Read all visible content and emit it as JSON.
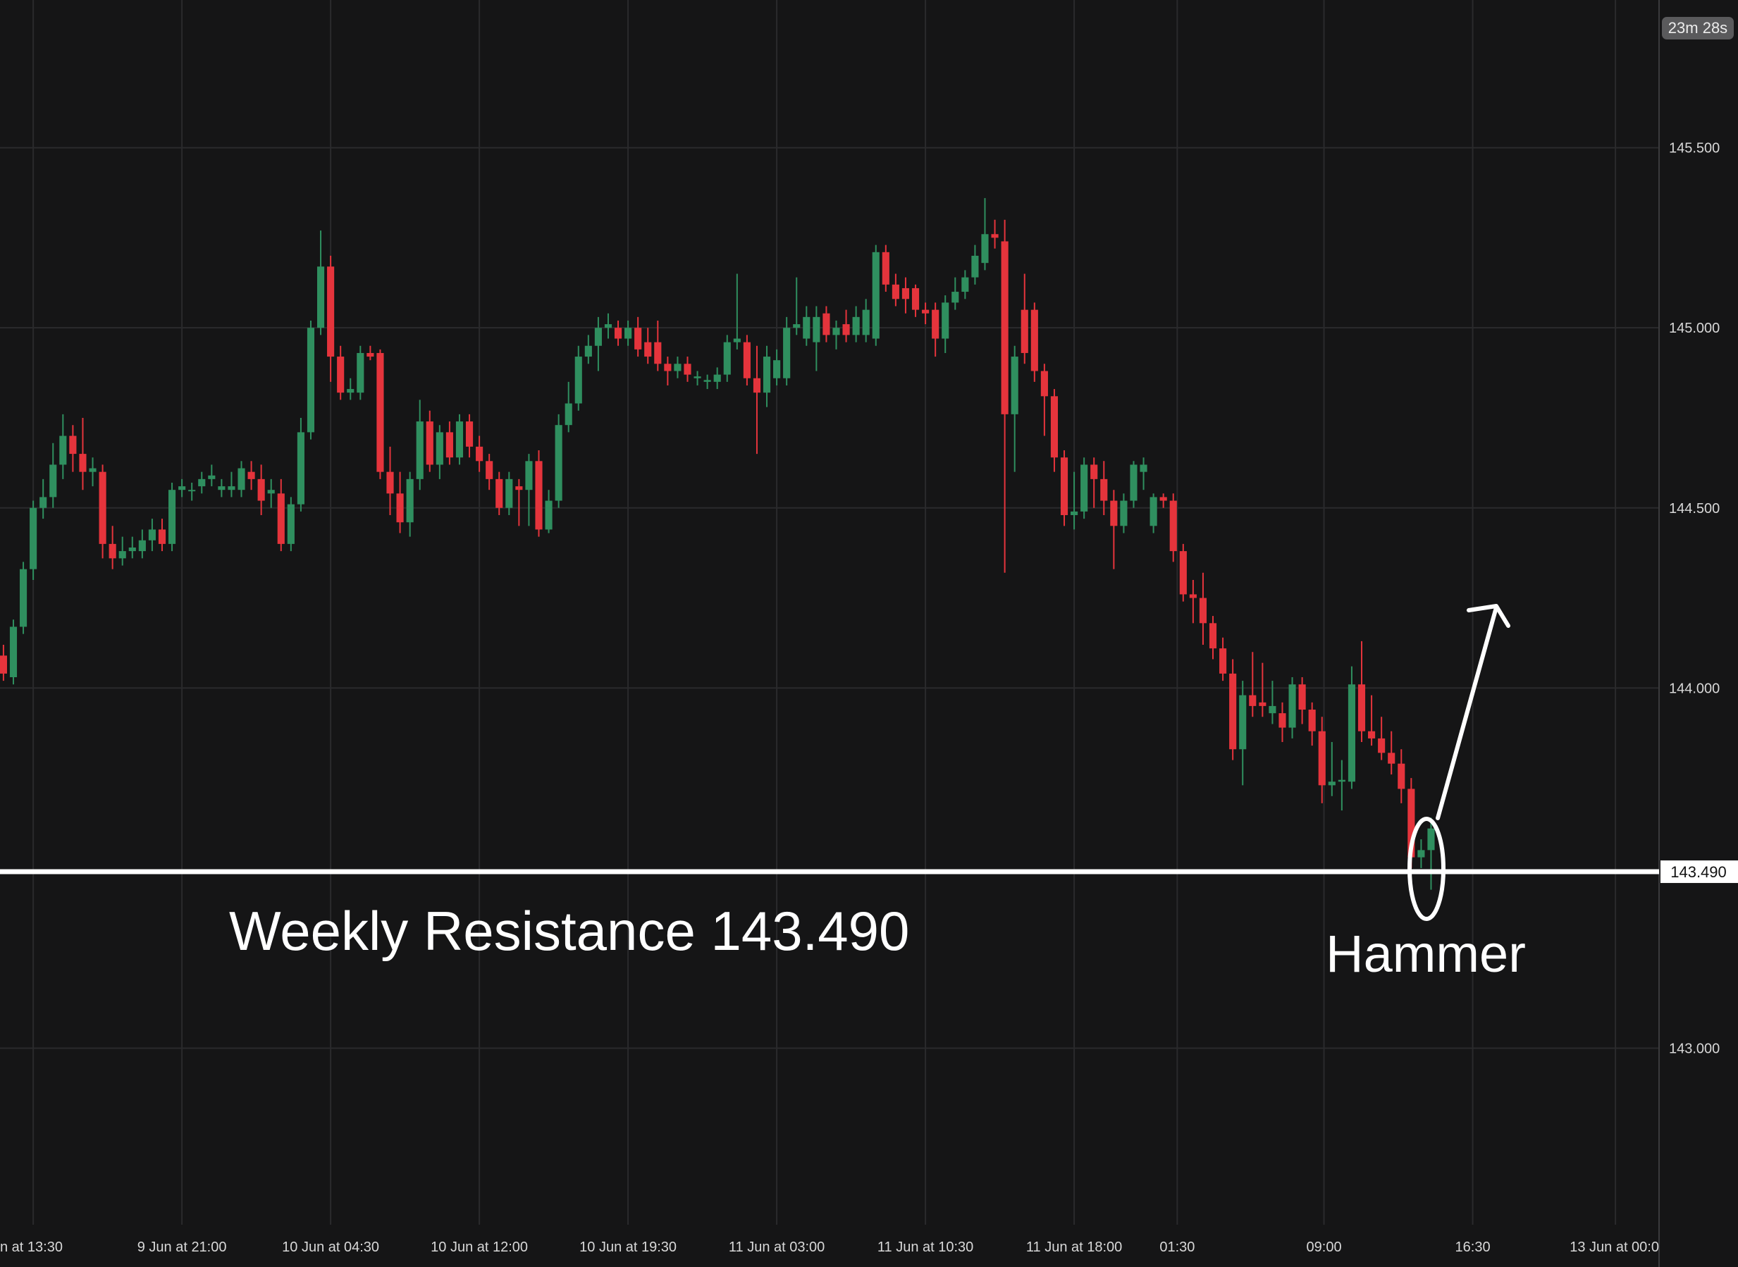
{
  "chart_data": {
    "type": "candlestick",
    "timer": "23m 28s",
    "up_color": "#2f8f5f",
    "down_color": "#e5343c",
    "xlim": [
      -3.35,
      164
    ],
    "ylim": [
      142.51,
      145.91
    ],
    "yticks": [
      {
        "value": 145.5,
        "label": "145.500"
      },
      {
        "value": 145.0,
        "label": "145.000"
      },
      {
        "value": 144.5,
        "label": "144.500"
      },
      {
        "value": 144.0,
        "label": "144.000"
      },
      {
        "value": 143.0,
        "label": "143.000"
      }
    ],
    "xticks": [
      {
        "value": 0,
        "label": "n at 13:30"
      },
      {
        "value": 15,
        "label": "9 Jun at 21:00"
      },
      {
        "value": 30,
        "label": "10 Jun at 04:30"
      },
      {
        "value": 45,
        "label": "10 Jun at 12:00"
      },
      {
        "value": 60,
        "label": "10 Jun at 19:30"
      },
      {
        "value": 75,
        "label": "11 Jun at 03:00"
      },
      {
        "value": 90,
        "label": "11 Jun at 10:30"
      },
      {
        "value": 105,
        "label": "11 Jun at 18:00"
      },
      {
        "value": 115.4,
        "label": "01:30"
      },
      {
        "value": 130.2,
        "label": "09:00"
      },
      {
        "value": 145.2,
        "label": "16:30"
      },
      {
        "value": 159.6,
        "label": "13 Jun at 00:0"
      }
    ],
    "grid": true,
    "price_line": {
      "value": 143.49,
      "label": "143.490"
    },
    "annotations": {
      "resistance": "Weekly Resistance 143.490",
      "pattern": "Hammer"
    },
    "x0": -3,
    "candles": [
      [
        144.09,
        144.12,
        144.02,
        144.04
      ],
      [
        144.03,
        144.19,
        144.01,
        144.17
      ],
      [
        144.17,
        144.35,
        144.15,
        144.33
      ],
      [
        144.33,
        144.52,
        144.3,
        144.5
      ],
      [
        144.5,
        144.58,
        144.47,
        144.53
      ],
      [
        144.53,
        144.68,
        144.5,
        144.62
      ],
      [
        144.62,
        144.76,
        144.58,
        144.7
      ],
      [
        144.7,
        144.73,
        144.6,
        144.65
      ],
      [
        144.65,
        144.75,
        144.55,
        144.6
      ],
      [
        144.6,
        144.64,
        144.56,
        144.61
      ],
      [
        144.6,
        144.62,
        144.36,
        144.4
      ],
      [
        144.4,
        144.45,
        144.33,
        144.36
      ],
      [
        144.36,
        144.42,
        144.34,
        144.38
      ],
      [
        144.38,
        144.42,
        144.36,
        144.39
      ],
      [
        144.38,
        144.44,
        144.36,
        144.41
      ],
      [
        144.41,
        144.47,
        144.38,
        144.44
      ],
      [
        144.44,
        144.47,
        144.38,
        144.4
      ],
      [
        144.4,
        144.57,
        144.38,
        144.55
      ],
      [
        144.55,
        144.58,
        144.53,
        144.56
      ],
      [
        144.55,
        144.57,
        144.52,
        144.55
      ],
      [
        144.56,
        144.6,
        144.54,
        144.58
      ],
      [
        144.58,
        144.62,
        144.56,
        144.59
      ],
      [
        144.55,
        144.58,
        144.53,
        144.56
      ],
      [
        144.55,
        144.6,
        144.53,
        144.56
      ],
      [
        144.55,
        144.63,
        144.53,
        144.61
      ],
      [
        144.6,
        144.63,
        144.55,
        144.58
      ],
      [
        144.58,
        144.62,
        144.48,
        144.52
      ],
      [
        144.54,
        144.58,
        144.5,
        144.55
      ],
      [
        144.54,
        144.58,
        144.38,
        144.4
      ],
      [
        144.4,
        144.53,
        144.38,
        144.51
      ],
      [
        144.51,
        144.75,
        144.49,
        144.71
      ],
      [
        144.71,
        145.02,
        144.69,
        145.0
      ],
      [
        145.0,
        145.27,
        144.98,
        145.17
      ],
      [
        145.17,
        145.2,
        144.85,
        144.92
      ],
      [
        144.92,
        144.95,
        144.8,
        144.82
      ],
      [
        144.82,
        144.86,
        144.8,
        144.83
      ],
      [
        144.82,
        144.95,
        144.8,
        144.93
      ],
      [
        144.93,
        144.95,
        144.91,
        144.92
      ],
      [
        144.93,
        144.94,
        144.58,
        144.6
      ],
      [
        144.6,
        144.67,
        144.48,
        144.54
      ],
      [
        144.54,
        144.6,
        144.43,
        144.46
      ],
      [
        144.46,
        144.6,
        144.42,
        144.58
      ],
      [
        144.58,
        144.8,
        144.55,
        144.74
      ],
      [
        144.74,
        144.77,
        144.6,
        144.62
      ],
      [
        144.62,
        144.73,
        144.58,
        144.71
      ],
      [
        144.71,
        144.74,
        144.62,
        144.64
      ],
      [
        144.64,
        144.76,
        144.62,
        144.74
      ],
      [
        144.74,
        144.76,
        144.64,
        144.67
      ],
      [
        144.67,
        144.7,
        144.6,
        144.63
      ],
      [
        144.63,
        144.65,
        144.55,
        144.58
      ],
      [
        144.58,
        144.6,
        144.48,
        144.5
      ],
      [
        144.5,
        144.6,
        144.48,
        144.58
      ],
      [
        144.56,
        144.58,
        144.45,
        144.55
      ],
      [
        144.55,
        144.65,
        144.45,
        144.63
      ],
      [
        144.63,
        144.66,
        144.42,
        144.44
      ],
      [
        144.44,
        144.55,
        144.43,
        144.52
      ],
      [
        144.52,
        144.76,
        144.5,
        144.73
      ],
      [
        144.73,
        144.85,
        144.71,
        144.79
      ],
      [
        144.79,
        144.95,
        144.77,
        144.92
      ],
      [
        144.92,
        144.98,
        144.9,
        144.95
      ],
      [
        144.95,
        145.03,
        144.88,
        145.0
      ],
      [
        145.0,
        145.04,
        144.97,
        145.01
      ],
      [
        145.0,
        145.02,
        144.95,
        144.97
      ],
      [
        144.97,
        145.02,
        144.95,
        145.0
      ],
      [
        145.0,
        145.03,
        144.92,
        144.94
      ],
      [
        144.96,
        145.0,
        144.9,
        144.92
      ],
      [
        144.96,
        145.02,
        144.88,
        144.9
      ],
      [
        144.9,
        144.92,
        144.84,
        144.88
      ],
      [
        144.88,
        144.92,
        144.86,
        144.9
      ],
      [
        144.9,
        144.92,
        144.85,
        144.87
      ],
      [
        144.86,
        144.88,
        144.84,
        144.865
      ],
      [
        144.85,
        144.87,
        144.83,
        144.855
      ],
      [
        144.85,
        144.89,
        144.83,
        144.87
      ],
      [
        144.87,
        144.98,
        144.85,
        144.96
      ],
      [
        144.96,
        145.15,
        144.94,
        144.97
      ],
      [
        144.96,
        144.98,
        144.84,
        144.86
      ],
      [
        144.86,
        144.95,
        144.65,
        144.82
      ],
      [
        144.82,
        144.95,
        144.78,
        144.92
      ],
      [
        144.86,
        144.94,
        144.84,
        144.91
      ],
      [
        144.86,
        145.03,
        144.84,
        145.0
      ],
      [
        145.0,
        145.14,
        144.98,
        145.01
      ],
      [
        144.97,
        145.06,
        144.95,
        145.03
      ],
      [
        144.96,
        145.06,
        144.88,
        145.03
      ],
      [
        145.04,
        145.06,
        144.96,
        144.98
      ],
      [
        144.98,
        145.02,
        144.94,
        145.0
      ],
      [
        145.01,
        145.05,
        144.96,
        144.98
      ],
      [
        144.98,
        145.06,
        144.96,
        145.03
      ],
      [
        144.98,
        145.08,
        144.96,
        145.05
      ],
      [
        144.97,
        145.23,
        144.95,
        145.21
      ],
      [
        145.21,
        145.23,
        145.1,
        145.12
      ],
      [
        145.12,
        145.15,
        145.06,
        145.08
      ],
      [
        145.11,
        145.14,
        145.04,
        145.08
      ],
      [
        145.11,
        145.12,
        145.03,
        145.05
      ],
      [
        145.05,
        145.07,
        145.01,
        145.04
      ],
      [
        145.05,
        145.07,
        144.92,
        144.97
      ],
      [
        144.97,
        145.09,
        144.93,
        145.07
      ],
      [
        145.07,
        145.14,
        145.05,
        145.1
      ],
      [
        145.1,
        145.16,
        145.08,
        145.14
      ],
      [
        145.14,
        145.23,
        145.12,
        145.2
      ],
      [
        145.18,
        145.36,
        145.16,
        145.26
      ],
      [
        145.26,
        145.3,
        145.22,
        145.25
      ],
      [
        145.24,
        145.3,
        144.32,
        144.76
      ],
      [
        144.76,
        144.95,
        144.6,
        144.92
      ],
      [
        145.05,
        145.15,
        144.9,
        144.93
      ],
      [
        145.05,
        145.07,
        144.85,
        144.88
      ],
      [
        144.88,
        144.9,
        144.7,
        144.81
      ],
      [
        144.81,
        144.83,
        144.6,
        144.64
      ],
      [
        144.64,
        144.66,
        144.45,
        144.48
      ],
      [
        144.48,
        144.6,
        144.44,
        144.49
      ],
      [
        144.49,
        144.64,
        144.47,
        144.62
      ],
      [
        144.62,
        144.64,
        144.5,
        144.58
      ],
      [
        144.58,
        144.63,
        144.48,
        144.52
      ],
      [
        144.52,
        144.55,
        144.33,
        144.45
      ],
      [
        144.45,
        144.54,
        144.43,
        144.52
      ],
      [
        144.52,
        144.63,
        144.5,
        144.62
      ],
      [
        144.6,
        144.64,
        144.55,
        144.62
      ],
      [
        144.45,
        144.54,
        144.43,
        144.53
      ],
      [
        144.53,
        144.54,
        144.5,
        144.52
      ],
      [
        144.52,
        144.54,
        144.35,
        144.38
      ],
      [
        144.38,
        144.4,
        144.24,
        144.26
      ],
      [
        144.26,
        144.3,
        144.18,
        144.25
      ],
      [
        144.25,
        144.32,
        144.12,
        144.18
      ],
      [
        144.18,
        144.2,
        144.08,
        144.11
      ],
      [
        144.11,
        144.14,
        144.02,
        144.04
      ],
      [
        144.04,
        144.08,
        143.8,
        143.83
      ],
      [
        143.83,
        144.02,
        143.73,
        143.98
      ],
      [
        143.98,
        144.1,
        143.92,
        143.95
      ],
      [
        143.96,
        144.07,
        143.92,
        143.95
      ],
      [
        143.93,
        144.02,
        143.9,
        143.95
      ],
      [
        143.93,
        143.96,
        143.85,
        143.89
      ],
      [
        143.89,
        144.03,
        143.86,
        144.01
      ],
      [
        144.01,
        144.03,
        143.9,
        143.94
      ],
      [
        143.94,
        143.96,
        143.84,
        143.88
      ],
      [
        143.88,
        143.92,
        143.68,
        143.73
      ],
      [
        143.73,
        143.85,
        143.7,
        143.74
      ],
      [
        143.74,
        143.8,
        143.66,
        143.745
      ],
      [
        143.74,
        144.06,
        143.72,
        144.01
      ],
      [
        144.01,
        144.13,
        143.85,
        143.88
      ],
      [
        143.88,
        143.98,
        143.84,
        143.86
      ],
      [
        143.86,
        143.92,
        143.8,
        143.82
      ],
      [
        143.82,
        143.88,
        143.76,
        143.79
      ],
      [
        143.79,
        143.83,
        143.68,
        143.72
      ],
      [
        143.72,
        143.75,
        143.5,
        143.53
      ],
      [
        143.53,
        143.58,
        143.5,
        143.55
      ],
      [
        143.55,
        143.64,
        143.44,
        143.61
      ]
    ]
  }
}
